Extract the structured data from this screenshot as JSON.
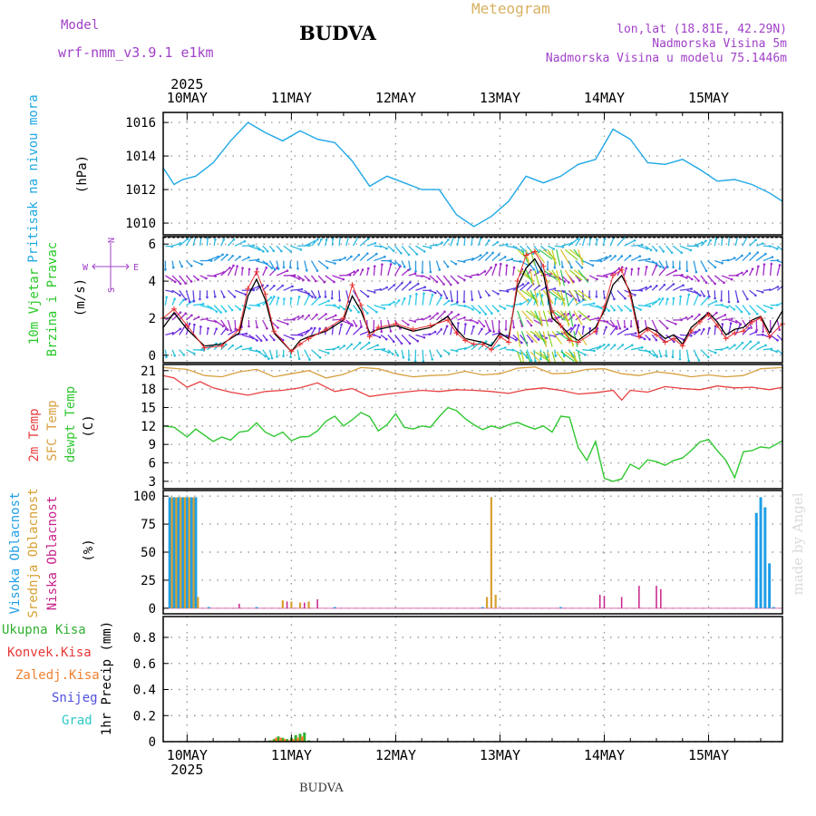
{
  "header": {
    "model_label": "Model",
    "model_name": "wrf-nmm_v3.9.1  e1km",
    "station": "BUDVA",
    "product": "Meteogram",
    "lonlat": "lon,lat (18.81E, 42.29N)",
    "elevation": "Nadmorska Visina 5m",
    "model_elevation": "Nadmorska Visina u modelu 75.1446m",
    "footer_station": "BUDVA",
    "credit": "made by Angel"
  },
  "colors": {
    "pressure": "#1ea7e6",
    "wind_speed": "#000000",
    "wind_gust": "#e83030",
    "t2m": "#e84040",
    "sfc": "#d8a040",
    "dewpt": "#30c830",
    "high_cloud": "#1e9ee6",
    "mid_cloud": "#d8a030",
    "low_cloud": "#c8208a",
    "total_precip": "#30b030",
    "conv_precip": "#e83838",
    "frozen_precip": "#f08030",
    "snow": "#5050e0",
    "graupel": "#30c8c8"
  },
  "time_axis": {
    "year": "2025",
    "days": [
      "10MAY",
      "11MAY",
      "12MAY",
      "13MAY",
      "14MAY",
      "15MAY"
    ],
    "start_hour_offset": -5.5,
    "end_hour_offset": 137
  },
  "panels": {
    "pressure": {
      "label": "Pritisak na nivou mora",
      "unit": "(hPa)"
    },
    "wind": {
      "label_line1": "10m Vjetar",
      "label_line2": "Brzina i Pravac",
      "unit": "(m/s)",
      "compass_n": "N",
      "compass_s": "S",
      "compass_w": "W",
      "compass_e": "E"
    },
    "temp": {
      "label_t2m": "2m Temp",
      "label_sfc": "SFC Temp",
      "label_dew": "dewpt Temp",
      "unit": "(C)"
    },
    "cloud": {
      "label_high": "Visoka Oblacnost",
      "label_mid": "Srednja Oblacnost",
      "label_low": "Niska Oblacnost",
      "unit": "(%)"
    },
    "precip": {
      "label_total": "Ukupna Kisa",
      "label_conv": "Konvek.Kisa",
      "label_frozen": "Zaledj.Kisa",
      "label_snow": "Snijeg",
      "label_graupel": "Grad",
      "unit": "1hr Precip (mm)"
    }
  },
  "chart_data": [
    {
      "type": "line",
      "name": "pressure",
      "ylabel": "(hPa)",
      "ylim": [
        1009.3,
        1016.6
      ],
      "yticks": [
        1010,
        1012,
        1014,
        1016
      ],
      "series": [
        {
          "name": "Pritisak na nivou mora",
          "x": [
            -5.5,
            -3,
            -1,
            2,
            6,
            10,
            14,
            18,
            22,
            26,
            30,
            34,
            38,
            42,
            46,
            50,
            54,
            58,
            62,
            66,
            70,
            74,
            78,
            82,
            86,
            90,
            94,
            98,
            102,
            106,
            110,
            114,
            118,
            122,
            126,
            130,
            134,
            137
          ],
          "y": [
            1013.3,
            1012.3,
            1012.6,
            1012.8,
            1013.6,
            1014.9,
            1016.0,
            1015.4,
            1014.9,
            1015.5,
            1015.0,
            1014.8,
            1013.7,
            1012.2,
            1012.8,
            1012.4,
            1012.0,
            1012.0,
            1010.5,
            1009.8,
            1010.4,
            1011.3,
            1012.8,
            1012.4,
            1012.8,
            1013.5,
            1013.8,
            1015.6,
            1015.0,
            1013.6,
            1013.5,
            1013.8,
            1013.2,
            1012.5,
            1012.6,
            1012.3,
            1011.8,
            1011.3
          ]
        }
      ]
    },
    {
      "type": "line",
      "name": "wind",
      "ylabel": "(m/s)",
      "ylim": [
        -0.4,
        6.4
      ],
      "yticks": [
        0,
        2,
        4,
        6
      ],
      "series": [
        {
          "name": "speed",
          "x": [
            -5.5,
            -3,
            0,
            4,
            8,
            12,
            14,
            16,
            18,
            20,
            24,
            26,
            28,
            32,
            36,
            38,
            40,
            42,
            44,
            48,
            52,
            56,
            60,
            62,
            64,
            66,
            68,
            70,
            72,
            74,
            76,
            78,
            80,
            82,
            84,
            86,
            88,
            90,
            94,
            96,
            98,
            100,
            102,
            104,
            106,
            108,
            110,
            112,
            114,
            116,
            118,
            120,
            122,
            124,
            126,
            128,
            130,
            132,
            134,
            137
          ],
          "y": [
            1.5,
            2.3,
            1.4,
            0.5,
            0.6,
            1.2,
            3.2,
            4.1,
            3.0,
            1.2,
            0.2,
            0.8,
            1.0,
            1.3,
            1.9,
            3.2,
            2.4,
            1.2,
            1.4,
            1.6,
            1.3,
            1.5,
            2.1,
            1.4,
            0.9,
            0.8,
            0.7,
            0.5,
            1.2,
            0.9,
            3.7,
            4.7,
            5.2,
            4.4,
            2.0,
            1.6,
            1.1,
            0.8,
            1.5,
            2.4,
            3.8,
            4.3,
            3.4,
            1.2,
            1.5,
            1.3,
            0.9,
            1.1,
            0.6,
            1.5,
            1.9,
            2.3,
            1.8,
            1.1,
            1.4,
            1.5,
            1.9,
            2.1,
            1.2,
            2.4
          ]
        },
        {
          "name": "gust",
          "x": [
            -5.5,
            -3,
            0,
            4,
            8,
            12,
            14,
            16,
            18,
            20,
            24,
            26,
            28,
            32,
            36,
            38,
            40,
            42,
            44,
            48,
            52,
            56,
            60,
            62,
            64,
            66,
            68,
            70,
            72,
            74,
            76,
            78,
            80,
            82,
            84,
            86,
            88,
            90,
            94,
            96,
            98,
            100,
            102,
            104,
            106,
            108,
            110,
            112,
            114,
            116,
            118,
            120,
            122,
            124,
            126,
            128,
            130,
            132,
            134,
            137
          ],
          "y": [
            2.0,
            2.5,
            1.6,
            0.4,
            0.5,
            1.4,
            3.6,
            4.5,
            3.3,
            1.3,
            0.2,
            0.6,
            0.9,
            1.4,
            2.0,
            3.8,
            2.7,
            1.0,
            1.5,
            1.7,
            1.4,
            1.6,
            1.9,
            1.2,
            0.8,
            0.6,
            0.6,
            0.3,
            1.0,
            0.7,
            4.0,
            5.4,
            5.6,
            4.8,
            2.4,
            1.6,
            0.8,
            0.7,
            1.3,
            2.6,
            4.3,
            4.6,
            3.2,
            1.0,
            1.4,
            1.1,
            0.7,
            0.9,
            0.5,
            1.3,
            1.8,
            2.2,
            1.6,
            0.9,
            1.2,
            1.3,
            1.8,
            2.0,
            1.0,
            1.7
          ]
        }
      ]
    },
    {
      "type": "line",
      "name": "temperature",
      "ylabel": "(C)",
      "ylim": [
        1.8,
        22
      ],
      "yticks": [
        3,
        6,
        9,
        12,
        15,
        18,
        21
      ],
      "series": [
        {
          "name": "SFC Temp",
          "x": [
            -5.5,
            0,
            4,
            8,
            12,
            16,
            20,
            24,
            28,
            32,
            36,
            40,
            44,
            48,
            52,
            56,
            60,
            64,
            68,
            72,
            76,
            80,
            84,
            88,
            92,
            96,
            100,
            104,
            108,
            112,
            116,
            120,
            124,
            128,
            132,
            137
          ],
          "y": [
            21.5,
            21.2,
            20.2,
            20.0,
            20.8,
            21.2,
            20.0,
            20.5,
            21.0,
            19.8,
            20.4,
            21.5,
            21.3,
            20.5,
            20.0,
            20.2,
            20.3,
            20.9,
            20.3,
            20.5,
            21.4,
            21.6,
            20.5,
            20.6,
            21.2,
            21.3,
            20.5,
            20.2,
            20.8,
            20.5,
            20.0,
            20.3,
            20.0,
            20.2,
            21.3,
            21.5
          ]
        },
        {
          "name": "2m Temp",
          "x": [
            -5.5,
            -3,
            0,
            3,
            6,
            10,
            14,
            18,
            22,
            26,
            30,
            34,
            38,
            42,
            46,
            50,
            54,
            58,
            62,
            66,
            70,
            74,
            78,
            82,
            86,
            90,
            94,
            98,
            100,
            102,
            106,
            110,
            114,
            118,
            122,
            126,
            130,
            134,
            137
          ],
          "y": [
            20.2,
            19.8,
            18.3,
            19.2,
            18.2,
            17.5,
            17.0,
            17.6,
            17.8,
            18.2,
            19.0,
            17.6,
            18.1,
            16.8,
            17.2,
            17.5,
            17.8,
            17.6,
            17.9,
            17.8,
            17.6,
            17.3,
            17.9,
            18.2,
            17.8,
            17.2,
            17.4,
            17.8,
            16.2,
            17.8,
            17.5,
            18.4,
            18.1,
            17.9,
            18.5,
            18.2,
            18.3,
            17.9,
            18.3
          ]
        },
        {
          "name": "dewpt Temp",
          "x": [
            -5.5,
            -3,
            0,
            2,
            4,
            6,
            8,
            10,
            12,
            14,
            16,
            18,
            20,
            22,
            24,
            26,
            28,
            30,
            32,
            34,
            36,
            38,
            40,
            42,
            44,
            46,
            48,
            50,
            52,
            54,
            56,
            58,
            60,
            62,
            64,
            66,
            68,
            70,
            72,
            74,
            76,
            78,
            80,
            82,
            84,
            86,
            88,
            90,
            92,
            94,
            96,
            98,
            100,
            102,
            104,
            106,
            108,
            110,
            112,
            114,
            116,
            118,
            120,
            122,
            124,
            126,
            128,
            130,
            132,
            134,
            137
          ],
          "y": [
            12.0,
            11.8,
            10.2,
            11.5,
            10.5,
            9.5,
            10.2,
            9.7,
            11.0,
            11.2,
            12.5,
            11.0,
            10.3,
            11.0,
            9.6,
            10.2,
            10.3,
            11.2,
            12.8,
            13.6,
            12.0,
            13.0,
            14.2,
            13.5,
            11.2,
            12.2,
            14.0,
            11.8,
            11.5,
            12.0,
            11.8,
            13.5,
            15.0,
            14.5,
            13.2,
            12.2,
            11.4,
            12.0,
            11.6,
            12.2,
            12.6,
            12.0,
            11.5,
            12.0,
            11.0,
            13.6,
            13.4,
            8.5,
            6.4,
            9.5,
            3.5,
            3.0,
            3.4,
            5.8,
            5.0,
            6.5,
            6.2,
            5.6,
            6.4,
            6.8,
            8.0,
            9.4,
            9.8,
            8.0,
            6.4,
            3.6,
            7.8,
            8.0,
            8.6,
            8.4,
            9.6
          ]
        }
      ]
    },
    {
      "type": "bar",
      "name": "cloud cover",
      "ylabel": "(%)",
      "ylim": [
        -5,
        105
      ],
      "yticks": [
        0,
        25,
        50,
        75,
        100
      ],
      "series": [
        {
          "name": "Visoka Oblacnost",
          "x": [
            -4,
            -3,
            -2,
            -1,
            0,
            1,
            2,
            5,
            16,
            34,
            68,
            86,
            131,
            132,
            133,
            134,
            135
          ],
          "y": [
            99,
            99,
            99,
            99,
            99,
            99,
            99,
            1,
            1,
            1,
            1,
            1,
            85,
            99,
            90,
            40,
            1
          ]
        },
        {
          "name": "Srednja Oblacnost",
          "x": [
            -3.5,
            -2.5,
            -1.5,
            -0.5,
            0.5,
            1.5,
            2.5,
            22,
            24,
            26,
            28,
            69,
            70,
            71
          ],
          "y": [
            99,
            99,
            99,
            99,
            99,
            99,
            10,
            7,
            6,
            5,
            6,
            10,
            99,
            12
          ]
        },
        {
          "name": "Niska Oblacnost",
          "x": [
            12,
            23,
            27,
            30,
            95,
            96,
            100,
            104,
            108,
            109
          ],
          "y": [
            4,
            6,
            5,
            8,
            12,
            11,
            10,
            20,
            20,
            17
          ]
        }
      ]
    },
    {
      "type": "bar",
      "name": "precipitation",
      "ylabel": "1hr Precip (mm)",
      "ylim": [
        0,
        0.96
      ],
      "yticks": [
        0,
        0.2,
        0.4,
        0.6,
        0.8
      ],
      "series": [
        {
          "name": "Ukupna Kisa",
          "x": [
            19,
            20,
            21,
            22,
            23,
            24,
            25,
            26,
            27,
            28
          ],
          "y": [
            0.01,
            0.02,
            0.04,
            0.03,
            0.02,
            0.03,
            0.05,
            0.06,
            0.07,
            0.01
          ]
        },
        {
          "name": "Zaledj.Kisa",
          "x": [
            19.5,
            20.5,
            21.5,
            22.5,
            23.5,
            24.5,
            25.5,
            26.5
          ],
          "y": [
            0.01,
            0.03,
            0.03,
            0.02,
            0.01,
            0.02,
            0.03,
            0.04
          ]
        }
      ]
    }
  ]
}
